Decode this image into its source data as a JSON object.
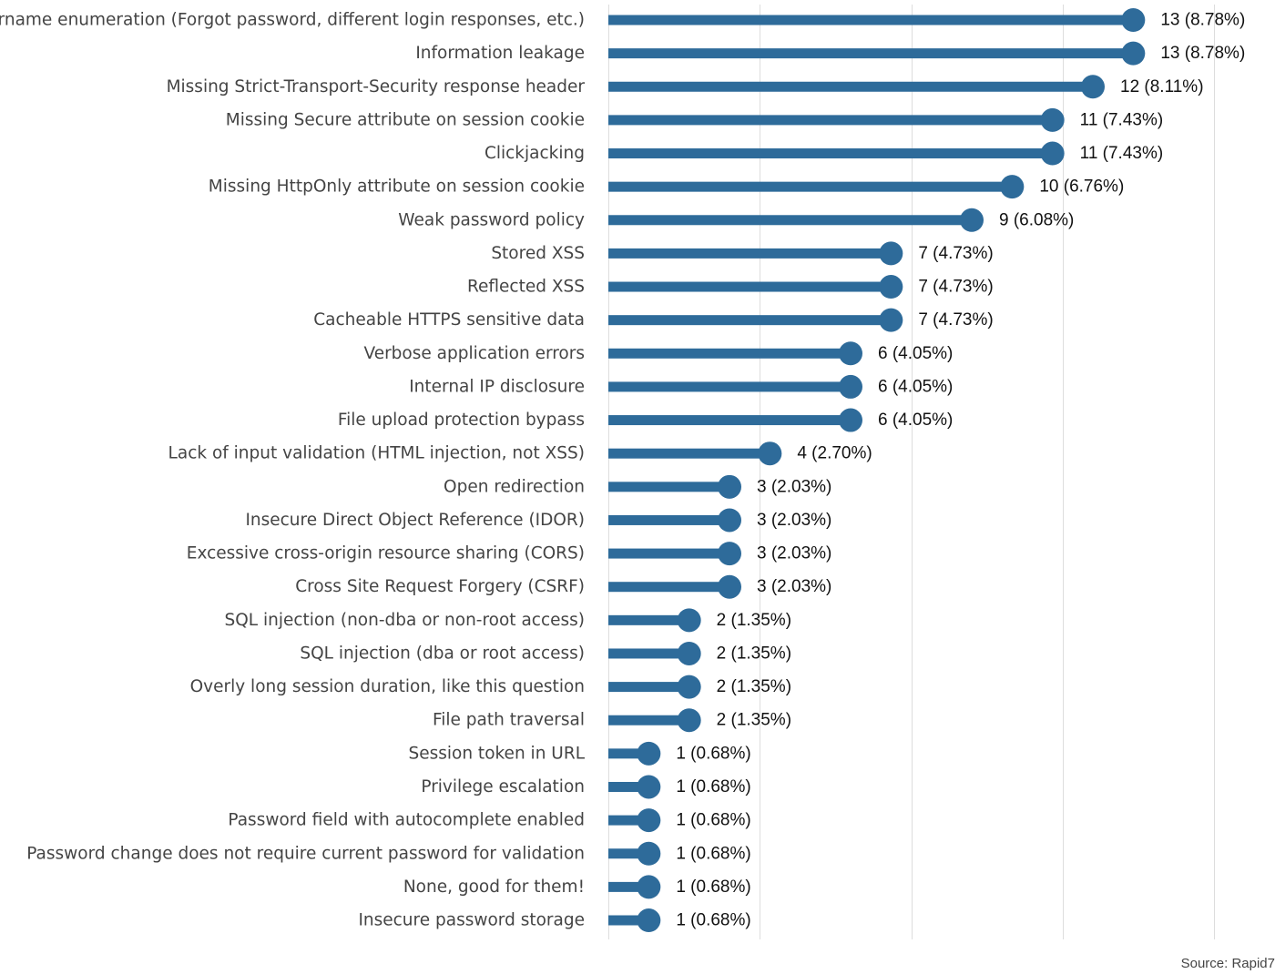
{
  "chart_data": {
    "type": "bar",
    "orientation": "horizontal",
    "style": "lollipop",
    "categories": [
      "Username enumeration (Forgot password, different login responses, etc.)",
      "Information leakage",
      "Missing Strict-Transport-Security response header",
      "Missing Secure attribute on session cookie",
      "Clickjacking",
      "Missing HttpOnly attribute on session cookie",
      "Weak password policy",
      "Stored XSS",
      "Reflected XSS",
      "Cacheable HTTPS sensitive data",
      "Verbose application errors",
      "Internal IP disclosure",
      "File upload protection bypass",
      "Lack of input validation (HTML injection, not XSS)",
      "Open redirection",
      "Insecure Direct Object Reference (IDOR)",
      "Excessive cross-origin resource sharing (CORS)",
      "Cross Site Request Forgery (CSRF)",
      "SQL injection (non-dba or non-root access)",
      "SQL injection (dba or root access)",
      "Overly long session duration, like this question",
      "File path traversal",
      "Session token in URL",
      "Privilege escalation",
      "Password field with autocomplete enabled",
      "Password change does not require current password for validation",
      "None, good for them!",
      "Insecure password storage"
    ],
    "values": [
      13,
      13,
      12,
      11,
      11,
      10,
      9,
      7,
      7,
      7,
      6,
      6,
      6,
      4,
      3,
      3,
      3,
      3,
      2,
      2,
      2,
      2,
      1,
      1,
      1,
      1,
      1,
      1
    ],
    "value_labels": [
      "13 (8.78%)",
      "13 (8.78%)",
      "12 (8.11%)",
      "11 (7.43%)",
      "11 (7.43%)",
      "10 (6.76%)",
      "9 (6.08%)",
      "7 (4.73%)",
      "7 (4.73%)",
      "7 (4.73%)",
      "6 (4.05%)",
      "6 (4.05%)",
      "6 (4.05%)",
      "4 (2.70%)",
      "3 (2.03%)",
      "3 (2.03%)",
      "3 (2.03%)",
      "3 (2.03%)",
      "2 (1.35%)",
      "2 (1.35%)",
      "2 (1.35%)",
      "2 (1.35%)",
      "1 (0.68%)",
      "1 (0.68%)",
      "1 (0.68%)",
      "1 (0.68%)",
      "1 (0.68%)",
      "1 (0.68%)"
    ],
    "xlim": [
      0,
      15
    ],
    "grid_values": [
      0,
      3.75,
      7.5,
      11.25,
      15
    ],
    "grid": true,
    "legend": "none",
    "title": "",
    "xlabel": "",
    "ylabel": "",
    "bar_color": "#2e6b9a",
    "grid_color": "#dddddd",
    "label_color": "#444444",
    "value_label_color": "#111111"
  },
  "source": "Source: Rapid7"
}
